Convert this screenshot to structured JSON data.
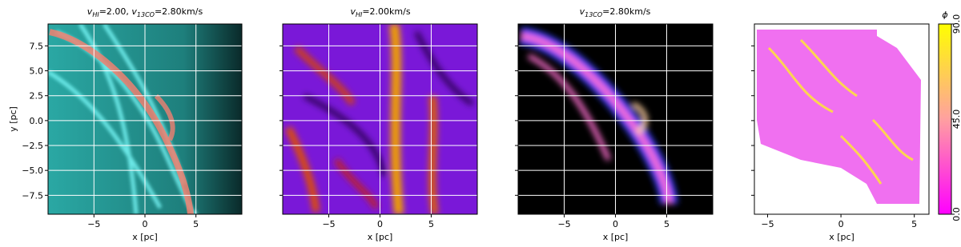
{
  "chart_data": [
    {
      "type": "image",
      "title": [
        "v",
        "HI",
        "=2.00, ",
        "v",
        "13CO",
        "=2.80km/s"
      ],
      "xlabel": "x [pc]",
      "ylabel": "y [pc]",
      "xlim": [
        -9.5,
        9.5
      ],
      "ylim": [
        -9.4,
        9.7
      ],
      "xticks": [
        {
          "value": -5,
          "label": "−5"
        },
        0,
        5
      ],
      "yticks": [
        {
          "value": -7.5,
          "label": "−7.5"
        },
        {
          "value": -5,
          "label": "−5.0"
        },
        {
          "value": -2.5,
          "label": "−2.5"
        },
        {
          "value": 0,
          "label": "0.0"
        },
        2.5,
        {
          "value": 5,
          "label": "5.0"
        },
        7.5
      ],
      "grid": true
    },
    {
      "type": "image",
      "title": [
        "v",
        "HI",
        "=2.00km/s"
      ],
      "xlabel": "x [pc]",
      "xlim": [
        -9.5,
        9.5
      ],
      "ylim": [
        -9.4,
        9.7
      ],
      "xticks": [
        {
          "value": -5,
          "label": "−5"
        },
        0,
        5
      ],
      "yticks": [
        -7.5,
        -5,
        -2.5,
        0,
        2.5,
        5,
        7.5
      ],
      "grid": true
    },
    {
      "type": "image",
      "title": [
        "v",
        "13CO",
        "=2.80km/s"
      ],
      "xlabel": "x [pc]",
      "xlim": [
        -9.5,
        9.5
      ],
      "ylim": [
        -9.4,
        9.7
      ],
      "xticks": [
        {
          "value": -5,
          "label": "−5"
        },
        0,
        5
      ],
      "yticks": [
        -7.5,
        -5,
        -2.5,
        0,
        2.5,
        5,
        7.5
      ],
      "grid": true
    },
    {
      "type": "image",
      "xlabel": "x [pc]",
      "xlim": [
        -5.9,
        6.0
      ],
      "ylim": [
        -9.4,
        9.7
      ],
      "xticks": [
        {
          "value": -5,
          "label": "−5"
        },
        0,
        5
      ],
      "yticks": [
        -7.5,
        -5,
        -2.5,
        0,
        2.5,
        5,
        7.5
      ],
      "grid": false,
      "colorbar": {
        "label": "ϕ",
        "clim": [
          0,
          90
        ],
        "colormap": [
          "#ff00ff",
          "#ffa0a0",
          "#ffff00"
        ],
        "ticks": [
          {
            "value": 0,
            "label": "0.0"
          },
          {
            "value": 45,
            "label": "45.0"
          },
          {
            "value": 90,
            "label": "90.0"
          }
        ]
      }
    }
  ]
}
